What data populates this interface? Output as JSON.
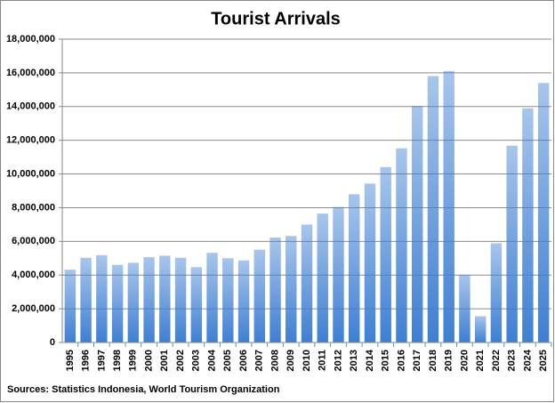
{
  "chart_data": {
    "type": "bar",
    "title": "Tourist Arrivals",
    "footnote": "Sources: Statistics Indonesia, World Tourism Organization",
    "categories": [
      "1995",
      "1996",
      "1997",
      "1998",
      "1999",
      "2000",
      "2001",
      "2002",
      "2003",
      "2004",
      "2005",
      "2006",
      "2007",
      "2008",
      "2009",
      "2010",
      "2011",
      "2012",
      "2013",
      "2014",
      "2015",
      "2016",
      "2017",
      "2018",
      "2019",
      "2020",
      "2021",
      "2022",
      "2023",
      "2024",
      "2025"
    ],
    "values": [
      4320000,
      5030000,
      5180000,
      4610000,
      4730000,
      5060000,
      5150000,
      5030000,
      4470000,
      5320000,
      5000000,
      4870000,
      5510000,
      6230000,
      6320000,
      7000000,
      7650000,
      8040000,
      8800000,
      9430000,
      10410000,
      11520000,
      14040000,
      15810000,
      16110000,
      4020000,
      1560000,
      5890000,
      11680000,
      13900000,
      15400000
    ],
    "color": "#3e7fd3",
    "ylim": [
      0,
      18000000
    ],
    "yticks": [
      {
        "value": 0,
        "label": "0"
      },
      {
        "value": 2000000,
        "label": "2,000,000"
      },
      {
        "value": 4000000,
        "label": "4,000,000"
      },
      {
        "value": 6000000,
        "label": "6,000,000"
      },
      {
        "value": 8000000,
        "label": "8,000,000"
      },
      {
        "value": 10000000,
        "label": "10,000,000"
      },
      {
        "value": 12000000,
        "label": "12,000,000"
      },
      {
        "value": 14000000,
        "label": "14,000,000"
      },
      {
        "value": 16000000,
        "label": "16,000,000"
      },
      {
        "value": 18000000,
        "label": "18,000,000"
      }
    ],
    "grid": true
  }
}
